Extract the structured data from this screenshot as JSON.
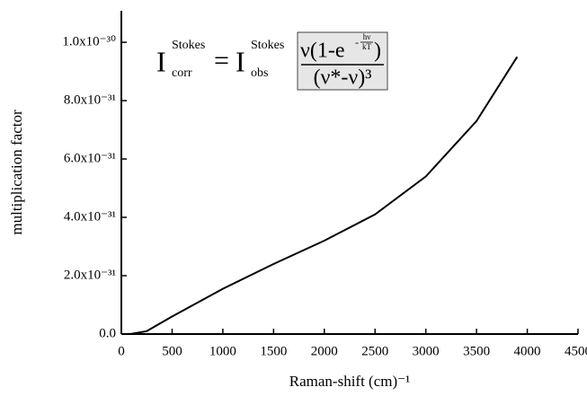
{
  "chart_data": {
    "type": "line",
    "xlabel": "Raman-shift (cm)⁻¹",
    "ylabel": "multiplication factor",
    "x": [
      50,
      100,
      250,
      500,
      1000,
      1500,
      2000,
      2500,
      3000,
      3500,
      3900
    ],
    "series": [
      {
        "color": "#000000",
        "values": [
          0,
          1e-33,
          1e-32,
          6e-32,
          1.55e-31,
          2.4e-31,
          3.2e-31,
          4.1e-31,
          5.4e-31,
          7.3e-31,
          9.5e-31
        ]
      }
    ],
    "xlim": [
      0,
      4500
    ],
    "xticks": [
      0,
      500,
      1000,
      1500,
      2000,
      2500,
      3000,
      3500,
      4000,
      4500
    ],
    "ylim": [
      0,
      1.108e-30
    ],
    "yticks": [
      {
        "value": 0,
        "label": "0.0"
      },
      {
        "value": 2e-31,
        "label": "2.0x10⁻³¹"
      },
      {
        "value": 4e-31,
        "label": "4.0x10⁻³¹"
      },
      {
        "value": 6e-31,
        "label": "6.0x10⁻³¹"
      },
      {
        "value": 8e-31,
        "label": "8.0x10⁻³¹"
      },
      {
        "value": 1e-30,
        "label": "1.0x10⁻³⁰"
      }
    ],
    "formula": {
      "lhs": "I",
      "lhs_sup": "Stokes",
      "lhs_sub": "corr",
      "eq": "=",
      "rhs": "I",
      "rhs_sup": "Stokes",
      "rhs_sub": "obs",
      "numerator": "ν(1-e",
      "exp_sign": "-",
      "exp_num": "hν",
      "exp_den": "kT",
      "close": ")",
      "denominator": "(ν*-ν)³"
    }
  }
}
